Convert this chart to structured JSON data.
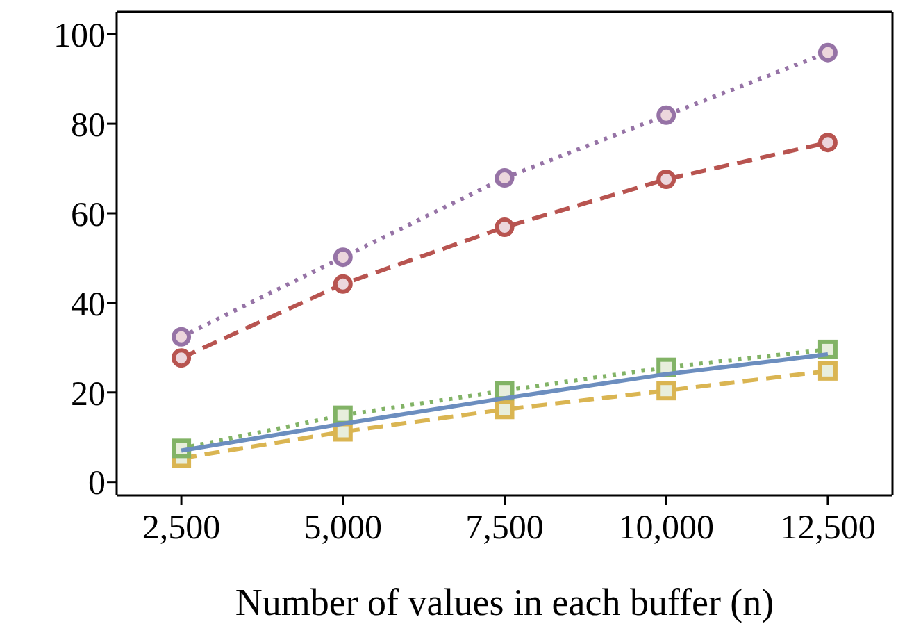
{
  "chart_data": {
    "type": "line",
    "xlabel": "Number of values in each buffer (n)",
    "x": [
      2500,
      5000,
      7500,
      10000,
      12500
    ],
    "xlim": [
      1500,
      13500
    ],
    "xticks": [
      {
        "value": 2500,
        "label": "2,500"
      },
      {
        "value": 5000,
        "label": "5,000"
      },
      {
        "value": 7500,
        "label": "7,500"
      },
      {
        "value": 10000,
        "label": "10,000"
      },
      {
        "value": 12500,
        "label": "12,500"
      }
    ],
    "ylim": [
      -3,
      105
    ],
    "yticks": [
      0,
      20,
      40,
      60,
      80,
      100
    ],
    "series": [
      {
        "color": "#6c8ebf",
        "values": [
          7,
          13,
          18.7,
          24.1,
          28.5
        ],
        "marker": "none",
        "line_style": "solid"
      },
      {
        "color": "#dab552",
        "values": [
          5.3,
          11.2,
          16.2,
          20.4,
          24.8
        ],
        "marker": "square",
        "line_style": "dashed"
      },
      {
        "color": "#82b366",
        "values": [
          7.5,
          14.9,
          20.4,
          25.6,
          29.6
        ],
        "marker": "square",
        "line_style": "dotted"
      },
      {
        "color": "#b85450",
        "values": [
          27.7,
          44.2,
          56.9,
          67.6,
          75.8
        ],
        "marker": "circle",
        "line_style": "dashed"
      },
      {
        "color": "#9673a6",
        "values": [
          32.4,
          50.2,
          67.9,
          81.9,
          95.9
        ],
        "marker": "circle",
        "line_style": "dotted"
      }
    ]
  }
}
